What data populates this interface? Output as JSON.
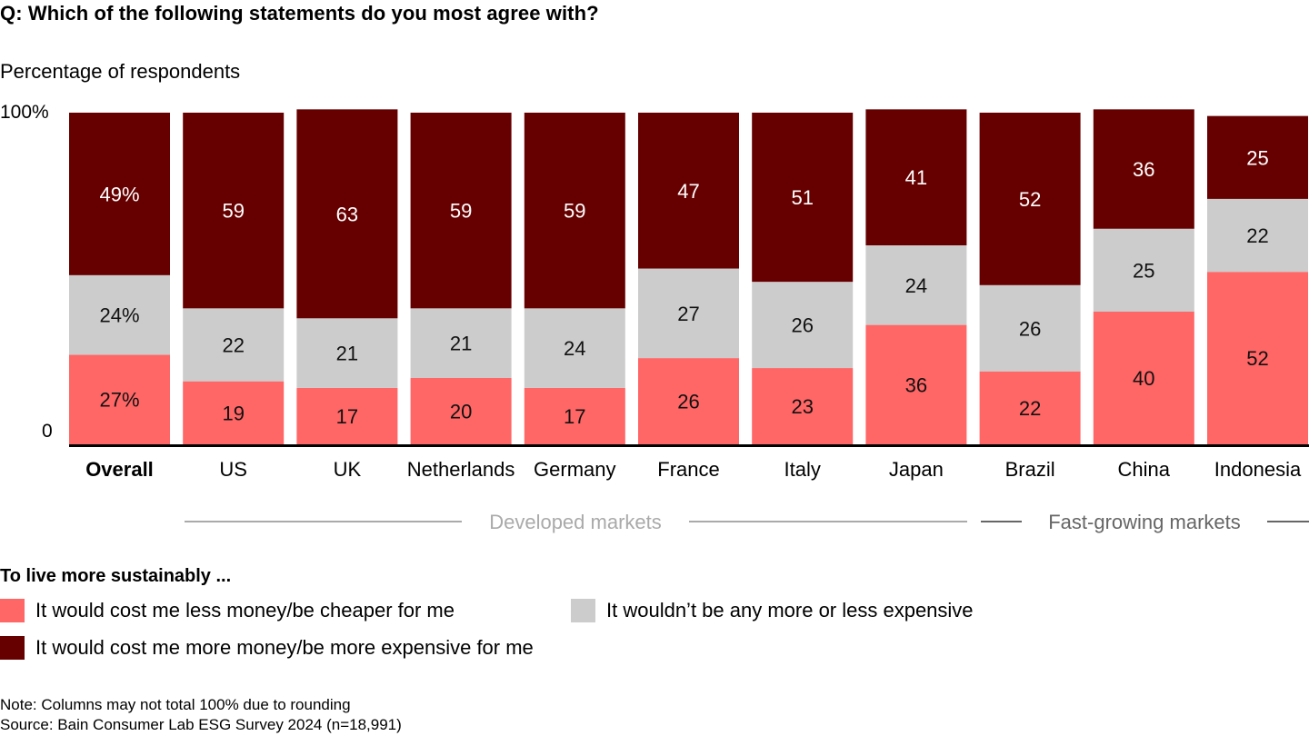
{
  "title": "Q: Which of the following statements do you most agree with?",
  "subtitle": "Percentage of respondents",
  "colors": {
    "cheaper": "#FF6666",
    "neutral": "#CCCCCC",
    "expensive": "#660000",
    "developed_group": "#AAAAAA",
    "fast_group": "#666666"
  },
  "chart_data": {
    "type": "bar",
    "stacked": true,
    "title": "Q: Which of the following statements do you most agree with?",
    "ylabel": "Percentage of respondents",
    "ylim": [
      0,
      100
    ],
    "yticks": [
      "0",
      "100%"
    ],
    "categories": [
      "Overall",
      "US",
      "UK",
      "Netherlands",
      "Germany",
      "France",
      "Italy",
      "Japan",
      "Brazil",
      "China",
      "Indonesia"
    ],
    "series": [
      {
        "key": "cheaper",
        "name": "It would cost me less money/be cheaper for me",
        "values": [
          27,
          19,
          17,
          20,
          17,
          26,
          23,
          36,
          22,
          40,
          52
        ],
        "labels": [
          "27%",
          "19",
          "17",
          "20",
          "17",
          "26",
          "23",
          "36",
          "22",
          "40",
          "52"
        ]
      },
      {
        "key": "neutral",
        "name": "It wouldn’t be any more or less expensive",
        "values": [
          24,
          22,
          21,
          21,
          24,
          27,
          26,
          24,
          26,
          25,
          22
        ],
        "labels": [
          "24%",
          "22",
          "21",
          "21",
          "24",
          "27",
          "26",
          "24",
          "26",
          "25",
          "22"
        ]
      },
      {
        "key": "expensive",
        "name": "It would cost me more money/be more expensive for me",
        "values": [
          49,
          59,
          63,
          59,
          59,
          47,
          51,
          41,
          52,
          36,
          25
        ],
        "labels": [
          "49%",
          "59",
          "63",
          "59",
          "59",
          "47",
          "51",
          "41",
          "52",
          "36",
          "25"
        ]
      }
    ],
    "groups": [
      {
        "name": "Developed markets",
        "categories": [
          "US",
          "UK",
          "Netherlands",
          "Germany",
          "France",
          "Italy",
          "Japan"
        ]
      },
      {
        "name": "Fast-growing markets",
        "categories": [
          "Brazil",
          "China",
          "Indonesia"
        ]
      }
    ],
    "highlight_category": "Overall",
    "legend_title": "To live more sustainably ...",
    "legend_position": "bottom-left",
    "grid": false
  },
  "legend": {
    "title": "To live more sustainably ...",
    "items": [
      {
        "label": "It would cost me less money/be cheaper for me"
      },
      {
        "label": "It wouldn’t be any more or less expensive"
      },
      {
        "label": "It would cost me more money/be more expensive for me"
      }
    ]
  },
  "notes": {
    "note": "Note: Columns may not total 100% due to rounding",
    "source": "Source: Bain Consumer Lab ESG Survey 2024 (n=18,991)"
  }
}
